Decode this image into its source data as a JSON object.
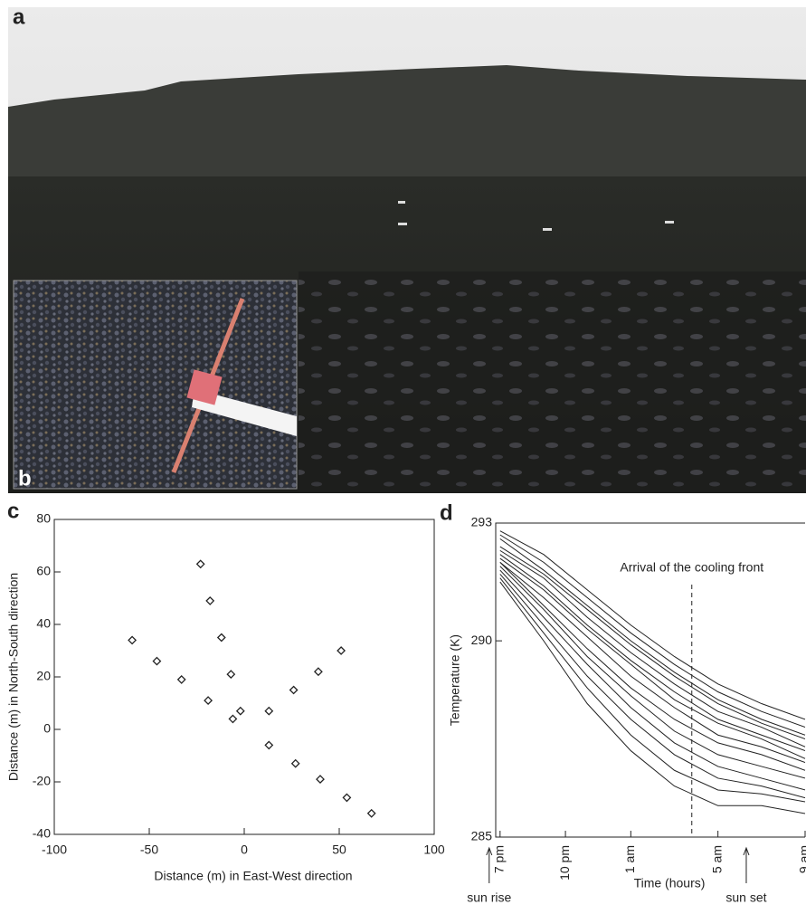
{
  "photos": {
    "main": {
      "panel_label": "a"
    },
    "inset": {
      "panel_label": "b"
    }
  },
  "chart_data": [
    {
      "type": "scatter",
      "panel_label": "c",
      "x_label": "Distance (m) in East-West direction",
      "y_label": "Distance (m) in North-South direction",
      "x": [
        -59,
        -46,
        -33,
        -19,
        -23,
        -18,
        -12,
        -7,
        -6,
        -2,
        13,
        13,
        26,
        27,
        39,
        40,
        51,
        54,
        67
      ],
      "values": [
        34,
        26,
        19,
        11,
        63,
        49,
        35,
        21,
        4,
        7,
        7,
        -6,
        15,
        -13,
        22,
        -19,
        30,
        -26,
        -32
      ],
      "color": "#222222",
      "xlim": [
        -100,
        100
      ],
      "xticks": [
        -100,
        -50,
        0,
        50,
        100
      ],
      "ylim": [
        -40,
        80
      ],
      "yticks": [
        -40,
        -20,
        0,
        20,
        40,
        60,
        80
      ]
    },
    {
      "type": "line",
      "panel_label": "d",
      "x_label": "Time (hours)",
      "y_label": "Temperature (K)",
      "x": [
        0,
        2,
        4,
        6,
        8,
        10,
        12,
        14
      ],
      "series": [
        {
          "color": "#222222",
          "values": [
            292.8,
            292.2,
            291.3,
            290.4,
            289.6,
            288.9,
            288.4,
            288.0
          ]
        },
        {
          "color": "#222222",
          "values": [
            292.7,
            292.0,
            291.1,
            290.2,
            289.4,
            288.7,
            288.2,
            287.8
          ]
        },
        {
          "color": "#222222",
          "values": [
            292.6,
            291.8,
            290.9,
            290.0,
            289.2,
            288.5,
            288.0,
            287.6
          ]
        },
        {
          "color": "#222222",
          "values": [
            292.4,
            291.7,
            290.8,
            289.9,
            289.1,
            288.4,
            287.9,
            287.5
          ]
        },
        {
          "color": "#222222",
          "values": [
            292.3,
            291.6,
            290.6,
            289.7,
            288.9,
            288.2,
            287.8,
            287.3
          ]
        },
        {
          "color": "#222222",
          "values": [
            292.2,
            291.4,
            290.4,
            289.5,
            288.7,
            288.0,
            287.6,
            287.2
          ]
        },
        {
          "color": "#222222",
          "values": [
            292.1,
            291.3,
            290.3,
            289.4,
            288.5,
            287.9,
            287.5,
            287.0
          ]
        },
        {
          "color": "#222222",
          "values": [
            292.0,
            291.1,
            290.1,
            289.1,
            288.3,
            287.6,
            287.3,
            286.9
          ]
        },
        {
          "color": "#222222",
          "values": [
            292.0,
            290.9,
            289.8,
            288.8,
            288.0,
            287.4,
            287.1,
            286.7
          ]
        },
        {
          "color": "#222222",
          "values": [
            291.9,
            290.8,
            289.6,
            288.6,
            287.7,
            287.1,
            286.8,
            286.5
          ]
        },
        {
          "color": "#222222",
          "values": [
            291.8,
            290.6,
            289.4,
            288.3,
            287.4,
            286.8,
            286.5,
            286.2
          ]
        },
        {
          "color": "#222222",
          "values": [
            291.7,
            290.4,
            289.1,
            288.0,
            287.1,
            286.5,
            286.3,
            286.0
          ]
        },
        {
          "color": "#222222",
          "values": [
            291.6,
            290.2,
            288.8,
            287.6,
            286.7,
            286.2,
            286.1,
            285.9
          ]
        },
        {
          "color": "#222222",
          "values": [
            291.5,
            290.0,
            288.4,
            287.2,
            286.3,
            285.8,
            285.8,
            285.6
          ]
        }
      ],
      "xlim": [
        -0.2,
        14
      ],
      "xticks": [
        {
          "value": 0,
          "label": "7 pm"
        },
        {
          "value": 3,
          "label": "10 pm"
        },
        {
          "value": 6,
          "label": "1 am"
        },
        {
          "value": 10,
          "label": "5 am"
        },
        {
          "value": 14,
          "label": "9 am"
        }
      ],
      "ylim": [
        285,
        293
      ],
      "yticks": [
        285,
        290,
        293
      ],
      "annotations": [
        {
          "text": "Arrival of the cooling front",
          "x": 8.8
        },
        {
          "text": "sun rise",
          "x": -0.5
        },
        {
          "text": "sun set",
          "x": 11.3
        }
      ]
    }
  ]
}
